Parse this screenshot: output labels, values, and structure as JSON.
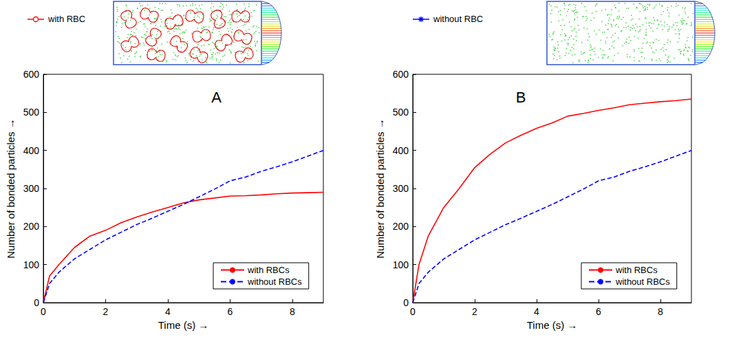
{
  "chart_data": [
    {
      "type": "line",
      "title": "A",
      "annotations": [
        {
          "text": "with RBC",
          "color": "#ff0000",
          "marker": "circle"
        }
      ],
      "x_label": "Time (s) →",
      "y_label": "Number of bonded particles →",
      "x": [
        0,
        0.2,
        0.5,
        1,
        1.5,
        2,
        2.5,
        3,
        3.5,
        4,
        4.5,
        5,
        5.5,
        6,
        6.5,
        7,
        7.5,
        8,
        8.5,
        9
      ],
      "series": [
        {
          "name": "with RBCs",
          "color": "#ff0000",
          "line_style": "solid",
          "values": [
            0,
            70,
            100,
            145,
            175,
            190,
            210,
            225,
            238,
            250,
            262,
            270,
            275,
            280,
            281,
            283,
            286,
            288,
            289,
            290
          ]
        },
        {
          "name": "without RBCs",
          "color": "#0000ff",
          "line_style": "dashed",
          "values": [
            0,
            50,
            80,
            115,
            140,
            165,
            185,
            205,
            222,
            240,
            258,
            278,
            298,
            320,
            330,
            345,
            357,
            370,
            385,
            400
          ]
        }
      ],
      "xlim": [
        0,
        9
      ],
      "xticks": [
        0,
        2,
        4,
        6,
        8
      ],
      "ylim": [
        0,
        600
      ],
      "yticks": [
        0,
        100,
        200,
        300,
        400,
        500,
        600
      ],
      "grid": false,
      "legend": "lower right"
    },
    {
      "type": "line",
      "title": "B",
      "annotations": [
        {
          "text": "without RBC",
          "color": "#0000ff",
          "marker": "asterisk"
        }
      ],
      "x_label": "Time (s) →",
      "y_label": "Number of bonded particles →",
      "x": [
        0,
        0.2,
        0.5,
        1,
        1.5,
        2,
        2.5,
        3,
        3.5,
        4,
        4.5,
        5,
        5.5,
        6,
        6.5,
        7,
        7.5,
        8,
        8.5,
        9
      ],
      "series": [
        {
          "name": "with RBCs",
          "color": "#ff0000",
          "line_style": "solid",
          "values": [
            0,
            100,
            175,
            250,
            300,
            355,
            390,
            420,
            440,
            458,
            472,
            490,
            497,
            505,
            512,
            520,
            524,
            528,
            531,
            535
          ]
        },
        {
          "name": "without RBCs",
          "color": "#0000ff",
          "line_style": "dashed",
          "values": [
            0,
            50,
            80,
            115,
            140,
            165,
            185,
            205,
            222,
            240,
            258,
            278,
            298,
            320,
            330,
            345,
            357,
            370,
            385,
            400
          ]
        }
      ],
      "xlim": [
        0,
        9
      ],
      "xticks": [
        0,
        2,
        4,
        6,
        8
      ],
      "ylim": [
        0,
        600
      ],
      "yticks": [
        0,
        100,
        200,
        300,
        400,
        500,
        600
      ],
      "grid": false,
      "legend": "lower right"
    }
  ]
}
